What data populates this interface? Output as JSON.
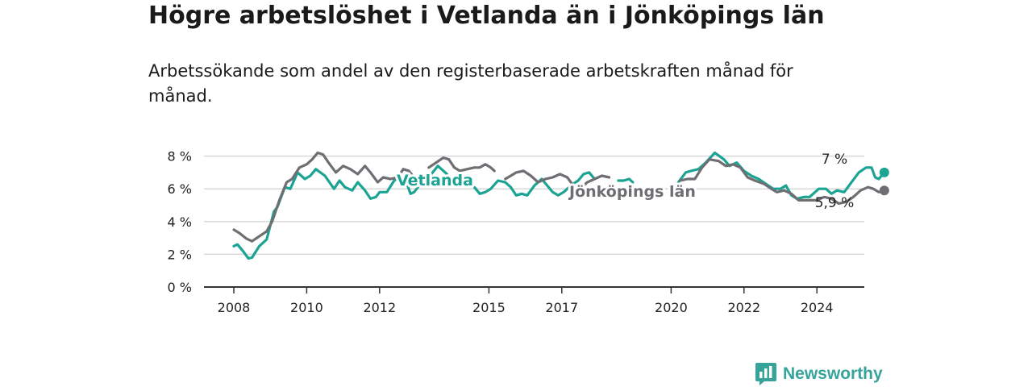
{
  "header": {
    "title": "Högre arbetslöshet i Vetlanda än i Jönköpings län",
    "subtitle": "Arbetssökande som andel av den registerbaserade arbetskraften månad för månad."
  },
  "brand": {
    "name": "Newsworthy"
  },
  "chart_data": {
    "type": "line",
    "title": "Högre arbetslöshet i Vetlanda än i Jönköpings län",
    "subtitle": "Arbetssökande som andel av den registerbaserade arbetskraften månad för månad.",
    "xlabel": "",
    "ylabel": "",
    "ylim": [
      0,
      9
    ],
    "xlim": [
      2007.5,
      2025.25
    ],
    "y_ticks": [
      0,
      2,
      4,
      6,
      8
    ],
    "y_tick_labels": [
      "0 %",
      "2 %",
      "4 %",
      "6 %",
      "8 %"
    ],
    "x_ticks": [
      2008,
      2010,
      2012,
      2015,
      2017,
      2020,
      2022,
      2024
    ],
    "x_tick_labels": [
      "2008",
      "2010",
      "2012",
      "2015",
      "2017",
      "2020",
      "2022",
      "2024"
    ],
    "grid": true,
    "series": [
      {
        "name": "Vetlanda",
        "color": "#1ba393",
        "label": "Vetlanda",
        "end_label": "7 %",
        "points": [
          [
            2008.0,
            2.5
          ],
          [
            2008.1,
            2.6
          ],
          [
            2008.25,
            2.2
          ],
          [
            2008.4,
            1.75
          ],
          [
            2008.5,
            1.8
          ],
          [
            2008.7,
            2.5
          ],
          [
            2008.9,
            2.9
          ],
          [
            2009.1,
            4.6
          ],
          [
            2009.2,
            4.9
          ],
          [
            2009.4,
            6.1
          ],
          [
            2009.55,
            6.0
          ],
          [
            2009.75,
            7.0
          ],
          [
            2009.95,
            6.6
          ],
          [
            2010.1,
            6.8
          ],
          [
            2010.25,
            7.2
          ],
          [
            2010.5,
            6.8
          ],
          [
            2010.75,
            6.0
          ],
          [
            2010.9,
            6.5
          ],
          [
            2011.05,
            6.1
          ],
          [
            2011.25,
            5.9
          ],
          [
            2011.4,
            6.4
          ],
          [
            2011.6,
            5.9
          ],
          [
            2011.75,
            5.4
          ],
          [
            2011.9,
            5.5
          ],
          [
            2012.0,
            5.8
          ],
          [
            2012.2,
            5.8
          ],
          [
            2012.4,
            6.5
          ],
          [
            2012.6,
            6.8
          ],
          [
            2012.75,
            6.3
          ],
          [
            2012.85,
            5.7
          ],
          [
            2012.95,
            5.8
          ],
          [
            2013.05,
            6.1
          ],
          null,
          [
            2013.35,
            6.7
          ],
          [
            2013.6,
            7.4
          ],
          [
            2013.85,
            6.9
          ],
          null,
          [
            2014.6,
            6.1
          ],
          [
            2014.75,
            5.7
          ],
          [
            2014.9,
            5.8
          ],
          [
            2015.05,
            6.0
          ],
          [
            2015.25,
            6.5
          ],
          [
            2015.45,
            6.4
          ],
          [
            2015.6,
            6.1
          ],
          [
            2015.75,
            5.6
          ],
          [
            2015.9,
            5.7
          ],
          [
            2016.05,
            5.6
          ],
          [
            2016.25,
            6.2
          ],
          [
            2016.45,
            6.6
          ],
          [
            2016.6,
            6.2
          ],
          [
            2016.75,
            5.8
          ],
          [
            2016.9,
            5.6
          ],
          [
            2017.05,
            5.8
          ],
          [
            2017.25,
            6.2
          ],
          [
            2017.45,
            6.5
          ],
          [
            2017.6,
            6.9
          ],
          [
            2017.75,
            7.0
          ],
          [
            2017.9,
            6.6
          ],
          null,
          [
            2018.55,
            6.5
          ],
          [
            2018.7,
            6.5
          ],
          [
            2018.85,
            6.6
          ],
          [
            2018.95,
            6.4
          ],
          null,
          [
            2020.2,
            6.4
          ],
          [
            2020.4,
            7.0
          ],
          [
            2020.55,
            7.1
          ],
          [
            2020.75,
            7.2
          ],
          [
            2020.95,
            7.6
          ],
          [
            2021.2,
            8.2
          ],
          [
            2021.45,
            7.8
          ],
          [
            2021.6,
            7.4
          ],
          [
            2021.8,
            7.6
          ],
          [
            2022.0,
            7.1
          ],
          [
            2022.2,
            6.8
          ],
          [
            2022.4,
            6.6
          ],
          [
            2022.6,
            6.3
          ],
          [
            2022.8,
            6.0
          ],
          [
            2023.0,
            6.0
          ],
          [
            2023.15,
            6.2
          ],
          [
            2023.3,
            5.6
          ],
          [
            2023.45,
            5.4
          ],
          [
            2023.65,
            5.5
          ],
          [
            2023.8,
            5.5
          ],
          [
            2024.05,
            6.0
          ],
          [
            2024.25,
            6.0
          ],
          [
            2024.4,
            5.7
          ],
          [
            2024.55,
            5.9
          ],
          [
            2024.75,
            5.8
          ],
          [
            2024.95,
            6.4
          ],
          [
            2025.15,
            7.0
          ],
          [
            2025.35,
            7.3
          ],
          [
            2025.5,
            7.3
          ],
          [
            2025.6,
            6.7
          ],
          [
            2025.7,
            6.6
          ],
          [
            2025.85,
            7.0
          ]
        ]
      },
      {
        "name": "Jönköpings län",
        "color": "#6e6e73",
        "label": "Jönköpings län",
        "end_label": "5,9 %",
        "points": [
          [
            2008.0,
            3.5
          ],
          [
            2008.15,
            3.3
          ],
          [
            2008.35,
            2.95
          ],
          [
            2008.5,
            2.8
          ],
          [
            2008.7,
            3.1
          ],
          [
            2008.9,
            3.4
          ],
          [
            2009.05,
            4.0
          ],
          [
            2009.25,
            5.3
          ],
          [
            2009.45,
            6.4
          ],
          [
            2009.6,
            6.6
          ],
          [
            2009.8,
            7.3
          ],
          [
            2010.0,
            7.5
          ],
          [
            2010.15,
            7.8
          ],
          [
            2010.3,
            8.2
          ],
          [
            2010.45,
            8.1
          ],
          [
            2010.6,
            7.6
          ],
          [
            2010.8,
            7.0
          ],
          [
            2011.0,
            7.4
          ],
          [
            2011.2,
            7.2
          ],
          [
            2011.4,
            6.9
          ],
          [
            2011.6,
            7.4
          ],
          [
            2011.75,
            7.0
          ],
          [
            2011.95,
            6.4
          ],
          [
            2012.1,
            6.7
          ],
          [
            2012.3,
            6.6
          ],
          [
            2012.5,
            6.7
          ],
          [
            2012.65,
            7.2
          ],
          [
            2012.8,
            7.1
          ],
          [
            2012.95,
            6.7
          ],
          [
            2013.1,
            6.5
          ],
          null,
          [
            2013.35,
            7.3
          ],
          [
            2013.55,
            7.6
          ],
          [
            2013.75,
            7.9
          ],
          [
            2013.9,
            7.8
          ],
          [
            2014.05,
            7.3
          ],
          [
            2014.2,
            7.1
          ],
          [
            2014.4,
            7.2
          ],
          [
            2014.6,
            7.3
          ],
          [
            2014.75,
            7.3
          ],
          [
            2014.9,
            7.5
          ],
          [
            2015.05,
            7.3
          ],
          [
            2015.15,
            7.1
          ],
          null,
          [
            2015.45,
            6.6
          ],
          [
            2015.6,
            6.8
          ],
          [
            2015.75,
            7.0
          ],
          [
            2015.95,
            7.1
          ],
          [
            2016.15,
            6.8
          ],
          [
            2016.35,
            6.4
          ],
          [
            2016.55,
            6.6
          ],
          [
            2016.75,
            6.7
          ],
          [
            2016.95,
            6.9
          ],
          [
            2017.15,
            6.7
          ],
          [
            2017.35,
            6.1
          ],
          [
            2017.5,
            6.0
          ],
          [
            2017.7,
            6.4
          ],
          [
            2017.9,
            6.6
          ],
          [
            2018.1,
            6.8
          ],
          [
            2018.3,
            6.7
          ],
          null,
          [
            2020.25,
            6.5
          ],
          [
            2020.45,
            6.6
          ],
          [
            2020.65,
            6.6
          ],
          [
            2020.85,
            7.3
          ],
          [
            2021.05,
            7.8
          ],
          [
            2021.3,
            7.7
          ],
          [
            2021.5,
            7.4
          ],
          [
            2021.7,
            7.5
          ],
          [
            2021.9,
            7.3
          ],
          [
            2022.1,
            6.7
          ],
          [
            2022.3,
            6.5
          ],
          [
            2022.55,
            6.3
          ],
          [
            2022.75,
            6.0
          ],
          [
            2022.9,
            5.8
          ],
          [
            2023.1,
            5.9
          ],
          [
            2023.3,
            5.7
          ],
          [
            2023.5,
            5.3
          ],
          [
            2023.7,
            5.3
          ],
          [
            2024.0,
            5.3
          ],
          [
            2024.2,
            5.5
          ],
          [
            2024.4,
            5.4
          ],
          [
            2024.6,
            5.1
          ],
          [
            2024.8,
            5.2
          ],
          [
            2025.0,
            5.5
          ],
          [
            2025.2,
            5.9
          ],
          [
            2025.4,
            6.1
          ],
          [
            2025.55,
            6.0
          ],
          [
            2025.7,
            5.8
          ],
          [
            2025.85,
            5.9
          ]
        ]
      }
    ]
  }
}
